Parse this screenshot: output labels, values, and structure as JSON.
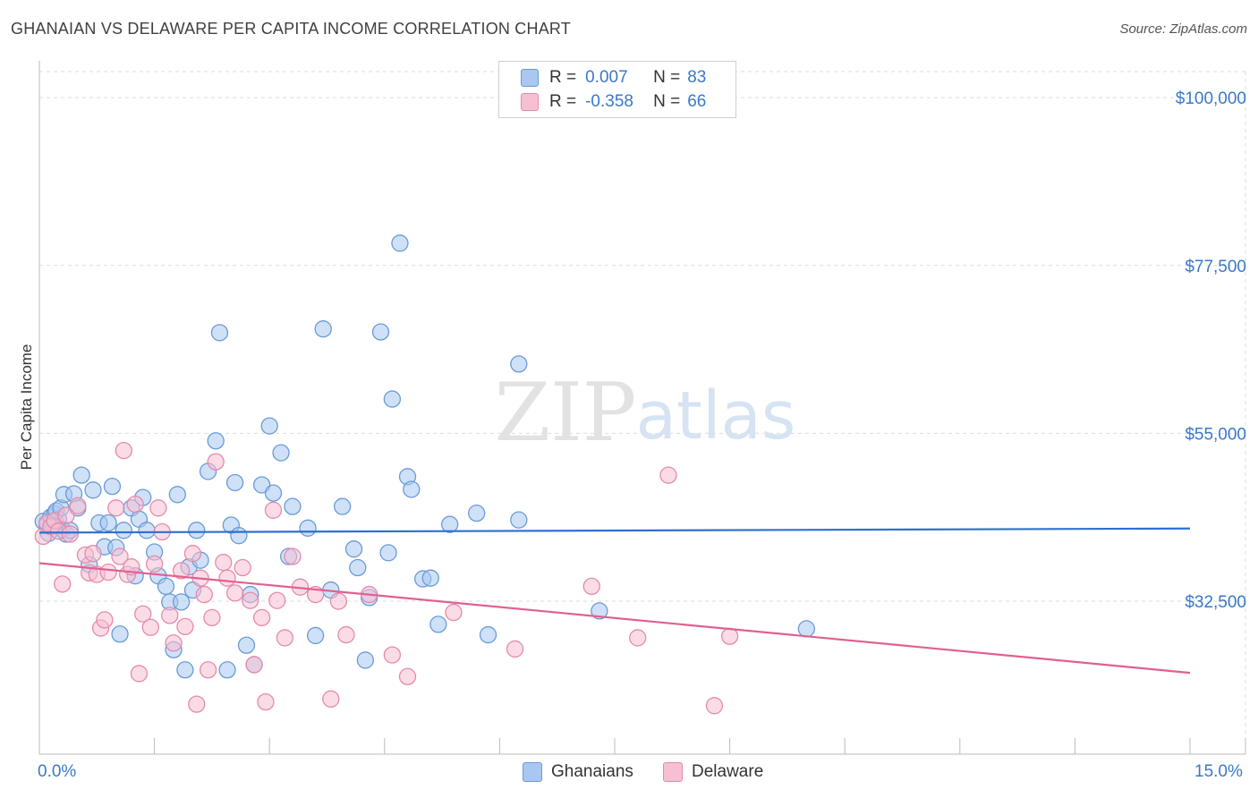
{
  "title": "GHANAIAN VS DELAWARE PER CAPITA INCOME CORRELATION CHART",
  "source": "Source: ZipAtlas.com",
  "watermark": {
    "zip": "ZIP",
    "atlas": "atlas"
  },
  "legend": {
    "rows": [
      {
        "r_label": "R =",
        "r_value": "0.007",
        "n_label": "N =",
        "n_value": "83",
        "color": "#a8c8f0",
        "border": "#6a9ad8"
      },
      {
        "r_label": "R =",
        "r_value": "-0.358",
        "n_label": "N =",
        "n_value": "66",
        "color": "#f7bfd2",
        "border": "#e58aab"
      }
    ]
  },
  "bottom_legend": [
    {
      "label": "Ghanaians",
      "color": "#a8c8f0",
      "border": "#6a9ad8"
    },
    {
      "label": "Delaware",
      "color": "#f7bfd2",
      "border": "#e58aab"
    }
  ],
  "axis": {
    "x_min_label": "0.0%",
    "x_max_label": "15.0%",
    "ylabel": "Per Capita Income"
  },
  "chart_data": {
    "type": "scatter",
    "title": "GHANAIAN VS DELAWARE PER CAPITA INCOME CORRELATION CHART",
    "xlabel": "",
    "ylabel": "Per Capita Income",
    "xlim": [
      0,
      15
    ],
    "ylim": [
      12000,
      103500
    ],
    "y_ticks": [
      {
        "value": 32500,
        "label": "$32,500"
      },
      {
        "value": 55000,
        "label": "$55,000"
      },
      {
        "value": 77500,
        "label": "$77,500"
      },
      {
        "value": 100000,
        "label": "$100,000"
      }
    ],
    "grid": true,
    "legend_position": "top-center",
    "series": [
      {
        "name": "Ghanaians",
        "color": "#6a9ad8",
        "fill": "#a8c8f0",
        "trend": {
          "x": [
            0,
            15
          ],
          "y": [
            41700,
            42250
          ]
        },
        "points": [
          [
            0.05,
            43.2
          ],
          [
            0.1,
            42.8
          ],
          [
            0.15,
            43.8
          ],
          [
            0.2,
            44.2
          ],
          [
            0.25,
            43.5
          ],
          [
            0.3,
            42.1
          ],
          [
            0.12,
            41.6
          ],
          [
            0.18,
            42.7
          ],
          [
            0.22,
            44.6
          ],
          [
            0.35,
            41.5
          ],
          [
            0.4,
            42.0
          ],
          [
            0.28,
            45.0
          ],
          [
            0.32,
            46.8
          ],
          [
            0.45,
            46.9
          ],
          [
            0.5,
            45.0
          ],
          [
            0.55,
            49.4
          ],
          [
            0.65,
            37.4
          ],
          [
            0.7,
            47.4
          ],
          [
            0.78,
            43.0
          ],
          [
            0.85,
            39.8
          ],
          [
            0.9,
            43.0
          ],
          [
            0.95,
            47.9
          ],
          [
            1.0,
            39.7
          ],
          [
            1.1,
            42.0
          ],
          [
            1.05,
            28.1
          ],
          [
            1.2,
            45.0
          ],
          [
            1.3,
            43.5
          ],
          [
            1.35,
            46.4
          ],
          [
            1.4,
            42.0
          ],
          [
            1.5,
            39.1
          ],
          [
            1.55,
            35.9
          ],
          [
            1.25,
            35.9
          ],
          [
            1.65,
            34.5
          ],
          [
            1.7,
            32.4
          ],
          [
            1.75,
            26.0
          ],
          [
            1.8,
            46.8
          ],
          [
            1.85,
            32.4
          ],
          [
            1.9,
            23.3
          ],
          [
            1.95,
            37.1
          ],
          [
            2.0,
            34.0
          ],
          [
            2.05,
            42.0
          ],
          [
            2.1,
            38.0
          ],
          [
            2.2,
            49.9
          ],
          [
            2.3,
            54.0
          ],
          [
            2.35,
            68.5
          ],
          [
            2.45,
            23.3
          ],
          [
            2.5,
            42.7
          ],
          [
            2.55,
            48.4
          ],
          [
            2.6,
            41.3
          ],
          [
            2.7,
            26.6
          ],
          [
            2.8,
            24.0
          ],
          [
            2.75,
            33.4
          ],
          [
            2.9,
            48.1
          ],
          [
            3.0,
            56.0
          ],
          [
            3.05,
            47.0
          ],
          [
            3.15,
            52.4
          ],
          [
            3.25,
            38.5
          ],
          [
            3.3,
            45.2
          ],
          [
            3.5,
            42.3
          ],
          [
            3.6,
            27.9
          ],
          [
            3.7,
            69.0
          ],
          [
            3.8,
            34.0
          ],
          [
            3.95,
            45.2
          ],
          [
            4.1,
            39.5
          ],
          [
            4.15,
            37.0
          ],
          [
            4.25,
            24.6
          ],
          [
            4.3,
            33.0
          ],
          [
            4.45,
            68.6
          ],
          [
            4.55,
            39.0
          ],
          [
            4.6,
            59.6
          ],
          [
            4.7,
            80.5
          ],
          [
            4.8,
            49.2
          ],
          [
            4.85,
            47.5
          ],
          [
            5.0,
            35.5
          ],
          [
            5.1,
            35.6
          ],
          [
            5.2,
            29.4
          ],
          [
            5.35,
            42.8
          ],
          [
            5.7,
            44.3
          ],
          [
            5.85,
            28.0
          ],
          [
            6.25,
            64.3
          ],
          [
            6.25,
            43.4
          ],
          [
            7.3,
            31.2
          ],
          [
            10.0,
            28.8
          ]
        ]
      },
      {
        "name": "Delaware",
        "color": "#e58aab",
        "fill": "#f7bfd2",
        "trend": {
          "x": [
            0,
            15
          ],
          "y": [
            37600,
            22900
          ]
        },
        "points": [
          [
            0.05,
            41.2
          ],
          [
            0.1,
            43.0
          ],
          [
            0.15,
            42.5
          ],
          [
            0.2,
            43.3
          ],
          [
            0.25,
            41.9
          ],
          [
            0.3,
            34.8
          ],
          [
            0.35,
            44.0
          ],
          [
            0.4,
            41.5
          ],
          [
            0.5,
            45.3
          ],
          [
            0.6,
            38.7
          ],
          [
            0.65,
            36.3
          ],
          [
            0.7,
            38.9
          ],
          [
            0.75,
            36.1
          ],
          [
            0.8,
            28.9
          ],
          [
            0.85,
            30.0
          ],
          [
            0.9,
            36.4
          ],
          [
            1.0,
            45.0
          ],
          [
            1.05,
            38.5
          ],
          [
            1.1,
            52.7
          ],
          [
            1.15,
            36.1
          ],
          [
            1.2,
            37.1
          ],
          [
            1.25,
            45.5
          ],
          [
            1.3,
            22.8
          ],
          [
            1.35,
            30.8
          ],
          [
            1.45,
            29.0
          ],
          [
            1.5,
            37.5
          ],
          [
            1.55,
            45.0
          ],
          [
            1.6,
            41.8
          ],
          [
            1.7,
            30.6
          ],
          [
            1.75,
            26.9
          ],
          [
            1.85,
            36.6
          ],
          [
            1.9,
            29.1
          ],
          [
            2.0,
            38.9
          ],
          [
            2.05,
            18.7
          ],
          [
            2.1,
            35.6
          ],
          [
            2.15,
            33.4
          ],
          [
            2.2,
            23.3
          ],
          [
            2.25,
            30.3
          ],
          [
            2.3,
            51.2
          ],
          [
            2.4,
            37.7
          ],
          [
            2.45,
            35.6
          ],
          [
            2.55,
            33.6
          ],
          [
            2.65,
            37.0
          ],
          [
            2.75,
            32.6
          ],
          [
            2.8,
            24.0
          ],
          [
            2.9,
            30.3
          ],
          [
            2.95,
            19.0
          ],
          [
            3.05,
            44.7
          ],
          [
            3.1,
            32.6
          ],
          [
            3.2,
            27.6
          ],
          [
            3.3,
            38.5
          ],
          [
            3.4,
            34.4
          ],
          [
            3.6,
            33.4
          ],
          [
            3.8,
            19.4
          ],
          [
            3.9,
            32.5
          ],
          [
            4.0,
            28.0
          ],
          [
            4.3,
            33.4
          ],
          [
            4.6,
            25.3
          ],
          [
            4.8,
            22.4
          ],
          [
            5.4,
            31.0
          ],
          [
            6.2,
            26.1
          ],
          [
            7.2,
            34.5
          ],
          [
            7.8,
            27.6
          ],
          [
            8.2,
            49.4
          ],
          [
            8.8,
            18.5
          ],
          [
            9.0,
            27.8
          ]
        ]
      }
    ]
  }
}
